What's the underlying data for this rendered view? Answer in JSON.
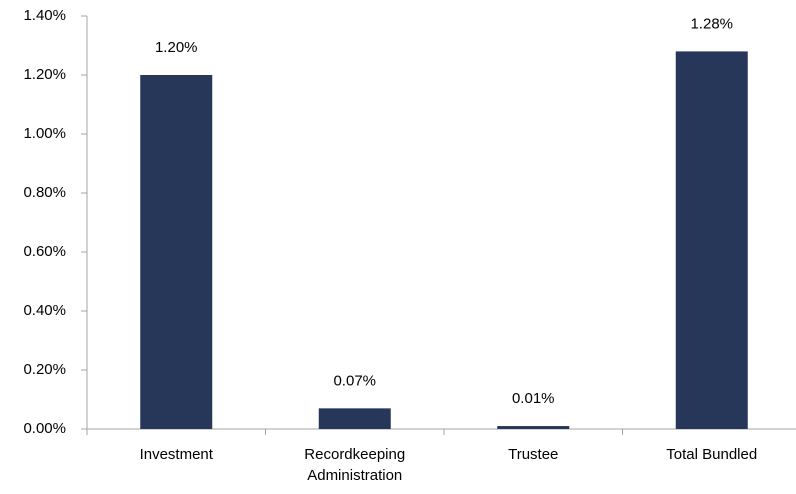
{
  "chart_data": {
    "type": "bar",
    "categories": [
      "Investment",
      "Recordkeeping Administration",
      "Trustee",
      "Total Bundled"
    ],
    "values": [
      1.2,
      0.07,
      0.01,
      1.28
    ],
    "value_labels": [
      "1.20%",
      "0.07%",
      "0.01%",
      "1.28%"
    ],
    "color": "#27375a",
    "ylim": [
      0,
      1.4
    ],
    "yticks": [
      {
        "value": 0,
        "label": "0.00%"
      },
      {
        "value": 0.2,
        "label": "0.20%"
      },
      {
        "value": 0.4,
        "label": "0.40%"
      },
      {
        "value": 0.6,
        "label": "0.60%"
      },
      {
        "value": 0.8,
        "label": "0.80%"
      },
      {
        "value": 1.0,
        "label": "1.00%"
      },
      {
        "value": 1.2,
        "label": "1.20%"
      },
      {
        "value": 1.4,
        "label": "1.40%"
      }
    ],
    "grid": false
  }
}
